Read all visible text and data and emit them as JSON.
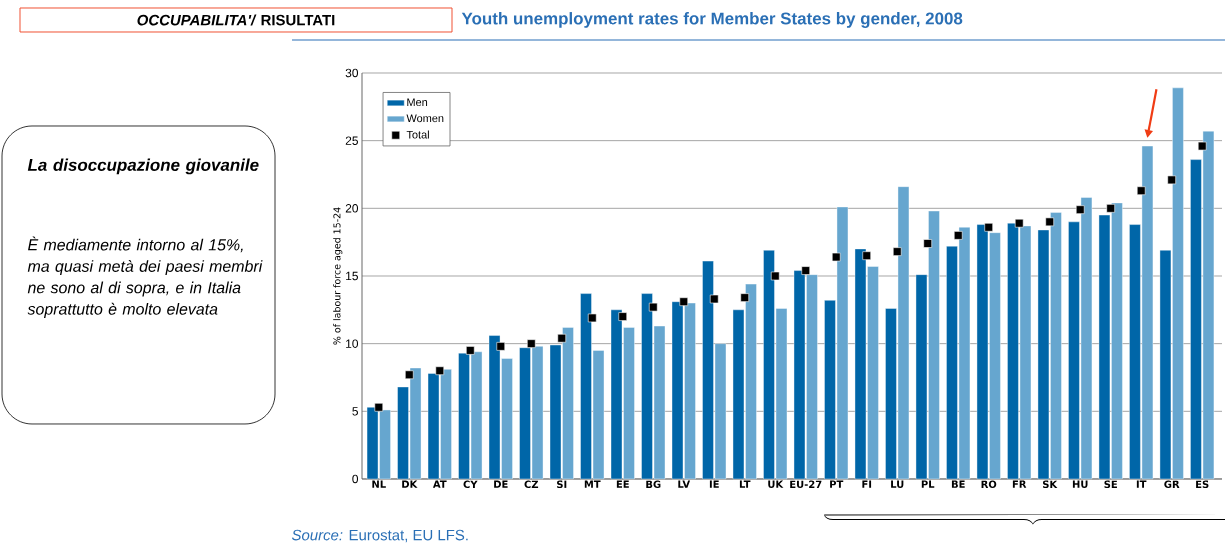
{
  "chart_data": {
    "type": "bar",
    "title": "Youth unemployment rates for Member States by gender, 2008",
    "ylabel": "% of labour force aged 15-24",
    "categories": [
      "NL",
      "DK",
      "AT",
      "CY",
      "DE",
      "CZ",
      "SI",
      "MT",
      "EE",
      "BG",
      "LV",
      "IE",
      "LT",
      "UK",
      "EU-27",
      "PT",
      "FI",
      "LU",
      "PL",
      "BE",
      "RO",
      "FR",
      "SK",
      "HU",
      "SE",
      "IT",
      "GR",
      "ES"
    ],
    "series": [
      {
        "name": "Men",
        "color": "#0066a8",
        "values": [
          5.3,
          6.8,
          7.8,
          9.3,
          10.6,
          9.7,
          9.9,
          13.7,
          12.5,
          13.7,
          13.1,
          16.1,
          12.5,
          16.9,
          15.4,
          13.2,
          17.0,
          12.6,
          15.1,
          17.2,
          18.8,
          18.9,
          18.4,
          19.0,
          19.5,
          18.8,
          16.9,
          23.6
        ]
      },
      {
        "name": "Women",
        "color": "#66a6cf",
        "values": [
          5.1,
          8.2,
          8.1,
          9.4,
          8.9,
          9.8,
          11.2,
          9.5,
          11.2,
          11.3,
          13.0,
          10.0,
          14.4,
          12.6,
          15.1,
          20.1,
          15.7,
          21.6,
          19.8,
          18.6,
          18.2,
          18.7,
          19.7,
          20.8,
          20.4,
          24.6,
          28.9,
          25.7
        ]
      },
      {
        "name": "Total",
        "type": "scatter",
        "marker": "square",
        "color": "#000000",
        "values": [
          5.3,
          7.7,
          8.0,
          9.5,
          9.8,
          10.0,
          10.4,
          11.9,
          12.0,
          12.7,
          13.1,
          13.3,
          13.4,
          15.0,
          15.4,
          16.4,
          16.5,
          16.8,
          17.4,
          18.0,
          18.6,
          18.9,
          19.0,
          19.9,
          20.0,
          21.3,
          22.1,
          24.6
        ]
      }
    ],
    "ylim": [
      0,
      30
    ],
    "yticks": [
      0,
      5,
      10,
      15,
      20,
      25,
      30
    ],
    "grid": "y",
    "legend": "top left",
    "annotations": [
      "*OCCUPABILITA'/*   RISULTATI",
      "La disoccupazione giovanile",
      "È mediamente intorno al 15%, ma quasi metà dei paesi membri ne sono al di sopra, e in Italia soprattutto è molto elevata",
      "*Source:* Eurostat, EU LFS."
    ]
  }
}
